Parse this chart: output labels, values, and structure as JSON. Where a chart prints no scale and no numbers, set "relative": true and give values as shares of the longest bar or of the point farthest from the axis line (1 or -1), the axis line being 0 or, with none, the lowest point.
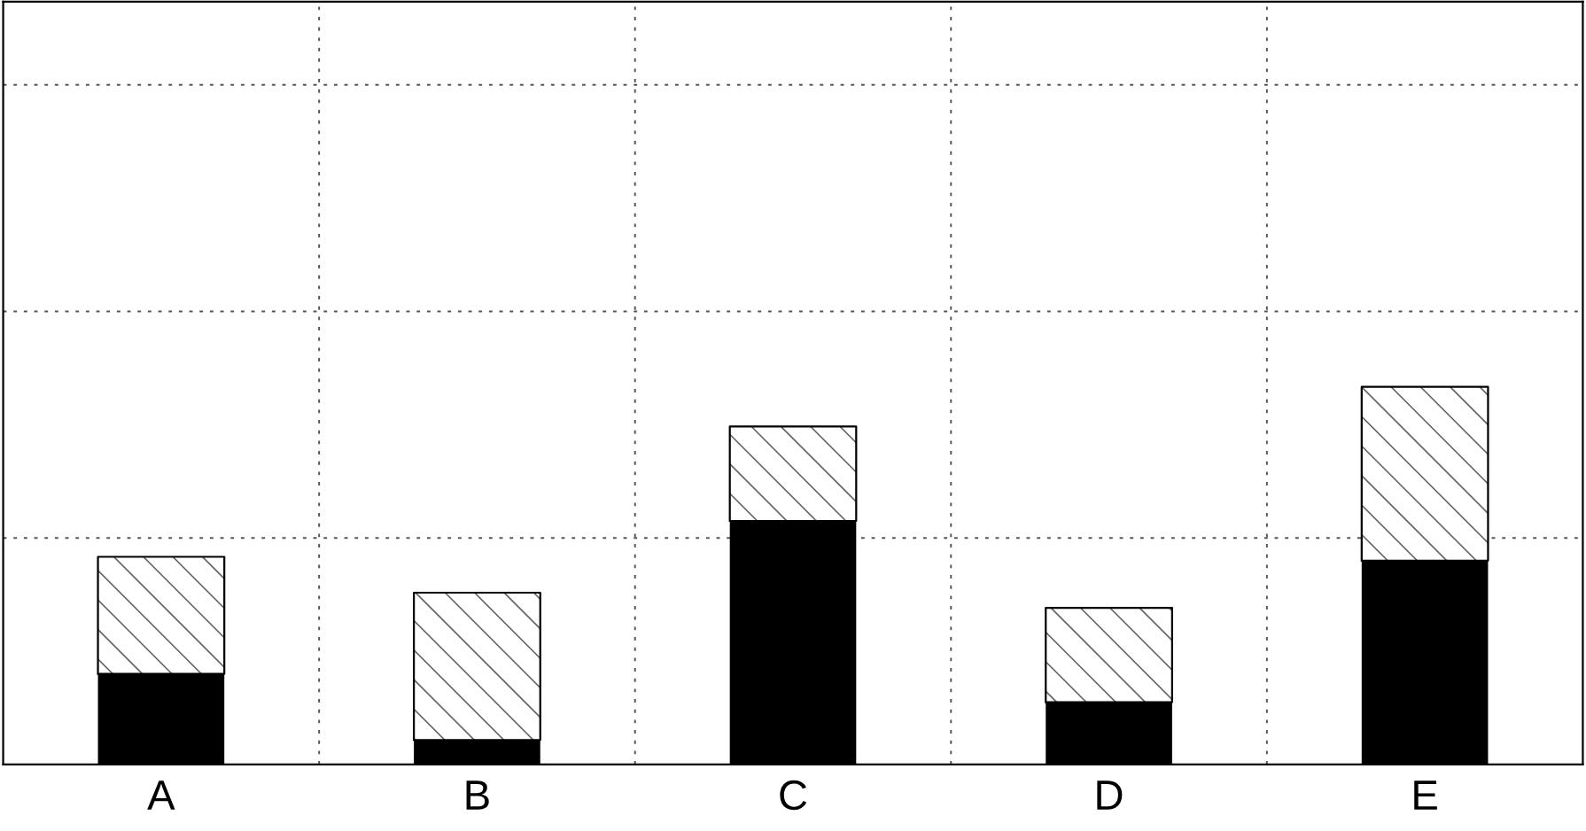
{
  "chart_data": {
    "type": "bar",
    "stacked": true,
    "relative": true,
    "grid": true,
    "categories": [
      "A",
      "B",
      "C",
      "D",
      "E"
    ],
    "series": [
      {
        "color": "#000000",
        "values": [
          0.24,
          0.065,
          0.645,
          0.165,
          0.54
        ]
      },
      {
        "color": "#ffffff",
        "values": [
          0.31,
          0.39,
          0.25,
          0.25,
          0.46
        ]
      }
    ]
  }
}
